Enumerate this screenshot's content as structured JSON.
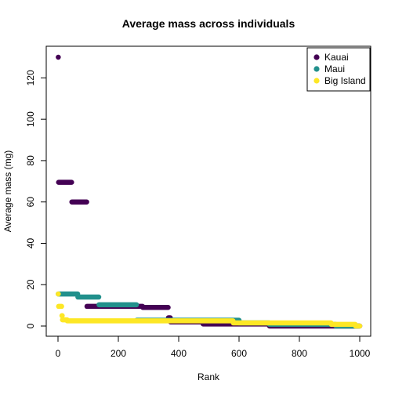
{
  "chart_data": {
    "type": "scatter",
    "title": "Average mass across individuals",
    "xlabel": "Rank",
    "ylabel": "Average mass (mg)",
    "xlim": [
      0,
      1000
    ],
    "ylim": [
      0,
      130
    ],
    "xticks": [
      "0",
      "200",
      "400",
      "600",
      "800",
      "1000"
    ],
    "yticks": [
      "0",
      "20",
      "40",
      "60",
      "80",
      "100",
      "120"
    ],
    "grid": false,
    "legend_position": "top-right",
    "series": [
      {
        "name": "Kauai",
        "color": "#440154",
        "segments": [
          {
            "x0": 1,
            "x1": 1,
            "y": 130
          },
          {
            "x0": 2,
            "x1": 45,
            "y": 69.5
          },
          {
            "x0": 46,
            "x1": 95,
            "y": 60
          },
          {
            "x0": 96,
            "x1": 280,
            "y": 9.5
          },
          {
            "x0": 281,
            "x1": 365,
            "y": 9
          },
          {
            "x0": 366,
            "x1": 372,
            "y": 4
          },
          {
            "x0": 373,
            "x1": 480,
            "y": 2
          },
          {
            "x0": 481,
            "x1": 700,
            "y": 1
          },
          {
            "x0": 701,
            "x1": 1000,
            "y": 0
          }
        ]
      },
      {
        "name": "Maui",
        "color": "#21908C",
        "segments": [
          {
            "x0": 1,
            "x1": 65,
            "y": 15.5
          },
          {
            "x0": 66,
            "x1": 135,
            "y": 14
          },
          {
            "x0": 136,
            "x1": 260,
            "y": 10.3
          },
          {
            "x0": 261,
            "x1": 600,
            "y": 2.8
          },
          {
            "x0": 601,
            "x1": 700,
            "y": 1.5
          },
          {
            "x0": 701,
            "x1": 920,
            "y": 0.8
          },
          {
            "x0": 921,
            "x1": 995,
            "y": 0
          }
        ]
      },
      {
        "name": "Big Island",
        "color": "#FDE725",
        "segments": [
          {
            "x0": 1,
            "x1": 1,
            "y": 15.5
          },
          {
            "x0": 2,
            "x1": 12,
            "y": 9.5
          },
          {
            "x0": 13,
            "x1": 14,
            "y": 5
          },
          {
            "x0": 15,
            "x1": 30,
            "y": 3
          },
          {
            "x0": 31,
            "x1": 580,
            "y": 2.5
          },
          {
            "x0": 581,
            "x1": 905,
            "y": 1.5
          },
          {
            "x0": 906,
            "x1": 985,
            "y": 0.8
          },
          {
            "x0": 986,
            "x1": 1000,
            "y": 0
          }
        ]
      }
    ]
  }
}
